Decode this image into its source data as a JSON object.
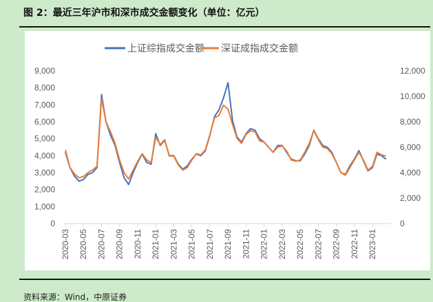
{
  "title": "图 2：最近三年沪市和深市成交金额变化（单位：亿元）",
  "source": "资料来源：Wind，中原证券",
  "chart_data": {
    "type": "line",
    "title": "",
    "legend_position": "top",
    "grid": false,
    "x_ticks": [
      "2020-03",
      "2020-05",
      "2020-07",
      "2020-09",
      "2020-11",
      "2021-01",
      "2021-03",
      "2021-05",
      "2021-07",
      "2021-09",
      "2021-11",
      "2022-01",
      "2022-03",
      "2022-05",
      "2022-07",
      "2022-09",
      "2022-11",
      "2023-01"
    ],
    "x_unit": "half-month periods starting 2020-03",
    "y_left": {
      "ylim": [
        0,
        9000
      ],
      "ticks": [
        "0",
        "1,000",
        "2,000",
        "3,000",
        "4,000",
        "5,000",
        "6,000",
        "7,000",
        "8,000",
        "9,000"
      ]
    },
    "y_right": {
      "ylim": [
        0,
        12000
      ],
      "ticks": [
        "0",
        "2,000",
        "4,000",
        "6,000",
        "8,000",
        "10,000",
        "12,000"
      ]
    },
    "series": [
      {
        "name": "上证综指成交金额",
        "axis": "left",
        "color": "#4472c4",
        "values": [
          4200,
          3300,
          2800,
          2500,
          2600,
          2900,
          3000,
          3300,
          7600,
          6000,
          5200,
          4600,
          3600,
          2700,
          2300,
          3000,
          3600,
          4100,
          3600,
          3500,
          5300,
          4600,
          4900,
          4000,
          4000,
          3500,
          3200,
          3400,
          3800,
          4100,
          4000,
          4300,
          5200,
          6300,
          6700,
          7400,
          8300,
          6100,
          5100,
          4800,
          5300,
          5600,
          5500,
          5000,
          4800,
          4500,
          4200,
          4600,
          4600,
          4200,
          3800,
          3700,
          3700,
          4100,
          4600,
          5500,
          5000,
          4600,
          4500,
          4200,
          3600,
          3000,
          2900,
          3400,
          3800,
          4300,
          3700,
          3100,
          3300,
          4100,
          4000,
          3800
        ]
      },
      {
        "name": "深证成指成交金额",
        "axis": "right",
        "color": "#ed7d31",
        "values": [
          5800,
          4400,
          3900,
          3600,
          3700,
          4000,
          4200,
          4500,
          9800,
          8000,
          7200,
          6300,
          5000,
          4000,
          3500,
          4200,
          4900,
          5500,
          5000,
          4800,
          6800,
          6200,
          6600,
          5300,
          5300,
          4600,
          4200,
          4400,
          5000,
          5500,
          5400,
          5800,
          7000,
          8300,
          8500,
          9300,
          9000,
          7800,
          6700,
          6300,
          7000,
          7300,
          7200,
          6500,
          6400,
          6000,
          5600,
          6000,
          6100,
          5700,
          5000,
          4900,
          5000,
          5600,
          6300,
          7300,
          6600,
          6000,
          5900,
          5500,
          4800,
          4000,
          3800,
          4400,
          5000,
          5600,
          5000,
          4200,
          4500,
          5600,
          5400,
          5300
        ]
      }
    ]
  }
}
